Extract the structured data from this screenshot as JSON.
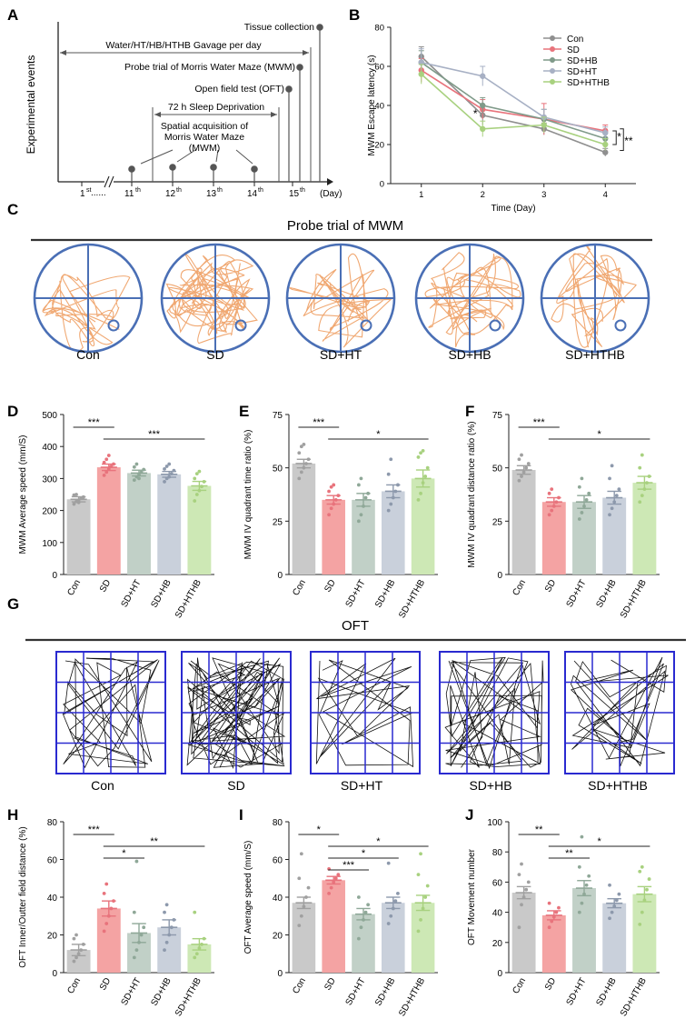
{
  "colors": {
    "con": "#c9c9c9",
    "sd": "#f4a3a3",
    "sdht": "#c1d0c7",
    "sdhb": "#c9d0db",
    "sdhthb": "#cde8b5",
    "con_dot": "#a0a0a0",
    "sd_dot": "#e8737c",
    "sdht_dot": "#8fa898",
    "sdhb_dot": "#8d99ac",
    "sdhthb_dot": "#a8d17f",
    "track": "#f0a872",
    "circle": "#4a6fb5",
    "grid": "#2a2ad0"
  },
  "panel_labels": {
    "a": "A",
    "b": "B",
    "c": "C",
    "d": "D",
    "e": "E",
    "f": "F",
    "g": "G",
    "h": "H",
    "i": "I",
    "j": "J"
  },
  "timeline": {
    "y_label": "Experimental events",
    "day_unit": "(Day)",
    "ellipsis": "......",
    "days": [
      {
        "n": "1",
        "sup": "st"
      },
      {
        "n": "11",
        "sup": "th"
      },
      {
        "n": "12",
        "sup": "th"
      },
      {
        "n": "13",
        "sup": "th"
      },
      {
        "n": "14",
        "sup": "th"
      },
      {
        "n": "15",
        "sup": "th"
      }
    ],
    "events": {
      "tissue": "Tissue collection",
      "gavage": "Water/HT/HB/HTHB  Gavage per day",
      "probe": "Probe trial of Morris Water Maze (MWM)",
      "oft": "Open field test (OFT)",
      "sleep": "72 h Sleep Deprivation",
      "spatial_1": "Spatial acquisition of",
      "spatial_2": "Morris Water Maze",
      "spatial_3": "(MWM)"
    }
  },
  "probe_section": {
    "title": "Probe trial of MWM",
    "groups": [
      "Con",
      "SD",
      "SD+HT",
      "SD+HB",
      "SD+HTHB"
    ]
  },
  "oft_section": {
    "title": "OFT",
    "groups": [
      "Con",
      "SD",
      "SD+HT",
      "SD+HB",
      "SD+HTHB"
    ]
  },
  "chart_data": [
    {
      "id": "B",
      "type": "line",
      "title": "",
      "xlabel": "Time (Day)",
      "ylabel": "MWM Escape latency (s)",
      "x": [
        1,
        2,
        3,
        4
      ],
      "xlim": [
        0.5,
        4.5
      ],
      "ylim": [
        0,
        80
      ],
      "yticks": [
        0,
        20,
        40,
        60,
        80
      ],
      "series": [
        {
          "name": "Con",
          "values": [
            65,
            35,
            28,
            16
          ],
          "err": [
            5,
            5,
            3,
            2
          ]
        },
        {
          "name": "SD",
          "values": [
            58,
            38,
            33,
            27
          ],
          "err": [
            6,
            5,
            8,
            3
          ]
        },
        {
          "name": "SD+HB",
          "values": [
            62,
            40,
            33,
            23
          ],
          "err": [
            6,
            4,
            5,
            3
          ]
        },
        {
          "name": "SD+HT",
          "values": [
            62,
            55,
            34,
            26
          ],
          "err": [
            7,
            5,
            4,
            3
          ]
        },
        {
          "name": "SD+HTHB",
          "values": [
            56,
            28,
            30,
            20
          ],
          "err": [
            5,
            4,
            4,
            3
          ]
        }
      ],
      "series_colors": [
        "#8f8f8f",
        "#e8737c",
        "#7f9a89",
        "#a7b0c4",
        "#a8d17f"
      ],
      "annotations": {
        "day2_star": "*",
        "bracket1": "*",
        "bracket2": "**"
      },
      "legend": "top-right"
    },
    {
      "id": "D",
      "type": "bar",
      "ylabel": "MWM Average speed (mm/S)",
      "categories": [
        "Con",
        "SD",
        "SD+HT",
        "SD+HB",
        "SD+HTHB"
      ],
      "values": [
        235,
        335,
        317,
        313,
        277
      ],
      "err": [
        8,
        10,
        9,
        9,
        14
      ],
      "points": [
        [
          220,
          228,
          232,
          238,
          242,
          248,
          250,
          225
        ],
        [
          310,
          320,
          330,
          338,
          345,
          350,
          360,
          372
        ],
        [
          295,
          305,
          312,
          320,
          328,
          336,
          345,
          300
        ],
        [
          290,
          300,
          305,
          315,
          325,
          330,
          338,
          345
        ],
        [
          230,
          250,
          262,
          275,
          290,
          300,
          315,
          322
        ]
      ],
      "ylim": [
        0,
        500
      ],
      "yticks": [
        0,
        100,
        200,
        300,
        400,
        500
      ],
      "significance": [
        {
          "from": 0,
          "to": 1,
          "label": "***"
        },
        {
          "from": 1,
          "to": 4,
          "label": "***"
        }
      ]
    },
    {
      "id": "E",
      "type": "bar",
      "ylabel": "MWM IV quadrant time ratio (%)",
      "categories": [
        "Con",
        "SD",
        "SD+HT",
        "SD+HB",
        "SD+HTHB"
      ],
      "values": [
        52,
        35,
        35,
        39,
        45
      ],
      "err": [
        2,
        2,
        3,
        3,
        4
      ],
      "points": [
        [
          45,
          48,
          50,
          52,
          54,
          57,
          60,
          61
        ],
        [
          28,
          31,
          33,
          35,
          37,
          39,
          41,
          42
        ],
        [
          25,
          28,
          32,
          36,
          38,
          42,
          45
        ],
        [
          30,
          33,
          36,
          39,
          42,
          47,
          54
        ],
        [
          35,
          38,
          43,
          46,
          50,
          55,
          57,
          58
        ]
      ],
      "ylim": [
        0,
        75
      ],
      "yticks": [
        0,
        25,
        50,
        75
      ],
      "significance": [
        {
          "from": 0,
          "to": 1,
          "label": "***"
        },
        {
          "from": 1,
          "to": 4,
          "label": "*"
        }
      ]
    },
    {
      "id": "F",
      "type": "bar",
      "ylabel": "MWM IV quadrant distance ratio (%)",
      "categories": [
        "Con",
        "SD",
        "SD+HT",
        "SD+HB",
        "SD+HTHB"
      ],
      "values": [
        49,
        34,
        34,
        36,
        43
      ],
      "err": [
        2,
        2,
        3,
        3,
        3
      ],
      "points": [
        [
          44,
          46,
          48,
          50,
          52,
          54,
          56
        ],
        [
          28,
          30,
          32,
          34,
          36,
          38,
          40
        ],
        [
          26,
          29,
          32,
          35,
          38,
          41,
          45
        ],
        [
          28,
          31,
          34,
          37,
          40,
          45,
          51
        ],
        [
          34,
          37,
          40,
          43,
          46,
          50,
          56
        ]
      ],
      "ylim": [
        0,
        75
      ],
      "yticks": [
        0,
        25,
        50,
        75
      ],
      "significance": [
        {
          "from": 0,
          "to": 1,
          "label": "***"
        },
        {
          "from": 1,
          "to": 4,
          "label": "*"
        }
      ]
    },
    {
      "id": "H",
      "type": "bar",
      "ylabel": "OFT Inner/Outter field distance (%)",
      "categories": [
        "Con",
        "SD",
        "SD+HT",
        "SD+HB",
        "SD+HTHB"
      ],
      "values": [
        12,
        34,
        21,
        24,
        15
      ],
      "err": [
        3,
        4,
        5,
        4,
        3
      ],
      "points": [
        [
          6,
          8,
          10,
          12,
          15,
          18,
          20
        ],
        [
          22,
          26,
          30,
          34,
          38,
          42,
          47
        ],
        [
          8,
          12,
          16,
          20,
          24,
          32,
          59
        ],
        [
          12,
          16,
          20,
          24,
          28,
          32,
          36
        ],
        [
          8,
          10,
          13,
          15,
          18,
          32
        ]
      ],
      "ylim": [
        0,
        80
      ],
      "yticks": [
        0,
        20,
        40,
        60,
        80
      ],
      "significance": [
        {
          "from": 0,
          "to": 1,
          "label": "***"
        },
        {
          "from": 1,
          "to": 4,
          "label": "**"
        },
        {
          "from": 1,
          "to": 2,
          "label": "*"
        }
      ]
    },
    {
      "id": "I",
      "type": "bar",
      "ylabel": "OFT Average speed (mm/S)",
      "categories": [
        "Con",
        "SD",
        "SD+HT",
        "SD+HB",
        "SD+HTHB"
      ],
      "values": [
        37,
        49,
        31,
        37,
        37
      ],
      "err": [
        3,
        2,
        3,
        3,
        4
      ],
      "points": [
        [
          25,
          30,
          35,
          40,
          45,
          50,
          63
        ],
        [
          42,
          45,
          48,
          50,
          52,
          55
        ],
        [
          18,
          24,
          28,
          32,
          36,
          40
        ],
        [
          26,
          30,
          34,
          38,
          42,
          58
        ],
        [
          22,
          28,
          34,
          40,
          46,
          52,
          63
        ]
      ],
      "ylim": [
        0,
        80
      ],
      "yticks": [
        0,
        20,
        40,
        60,
        80
      ],
      "significance": [
        {
          "from": 0,
          "to": 1,
          "label": "*"
        },
        {
          "from": 1,
          "to": 4,
          "label": "*"
        },
        {
          "from": 1,
          "to": 3,
          "label": "*"
        },
        {
          "from": 1,
          "to": 2,
          "label": "***"
        }
      ]
    },
    {
      "id": "J",
      "type": "bar",
      "ylabel": "OFT Movement number",
      "categories": [
        "Con",
        "SD",
        "SD+HT",
        "SD+HB",
        "SD+HTHB"
      ],
      "values": [
        53,
        38,
        56,
        46,
        52
      ],
      "err": [
        4,
        3,
        5,
        3,
        5
      ],
      "points": [
        [
          30,
          45,
          50,
          55,
          60,
          65,
          72
        ],
        [
          30,
          34,
          37,
          40,
          43,
          46
        ],
        [
          40,
          46,
          52,
          58,
          64,
          70,
          90
        ],
        [
          36,
          40,
          44,
          48,
          52,
          58
        ],
        [
          32,
          40,
          48,
          55,
          62,
          67,
          70
        ]
      ],
      "ylim": [
        0,
        100
      ],
      "yticks": [
        0,
        20,
        40,
        60,
        80,
        100
      ],
      "significance": [
        {
          "from": 0,
          "to": 1,
          "label": "**"
        },
        {
          "from": 1,
          "to": 4,
          "label": "*"
        },
        {
          "from": 1,
          "to": 2,
          "label": "**"
        }
      ]
    }
  ]
}
